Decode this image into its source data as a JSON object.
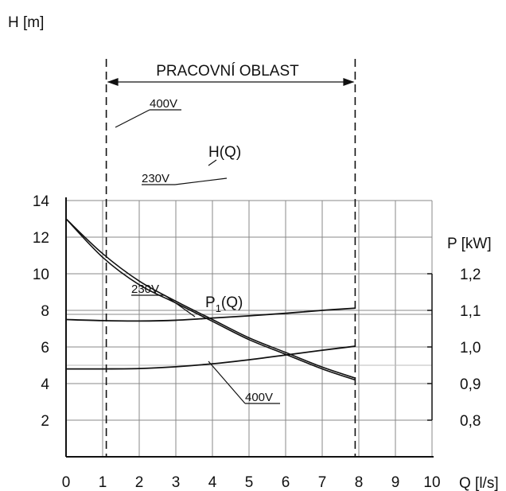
{
  "chart_data": {
    "type": "line",
    "region_label": "PRACOVNÍ OBLAST",
    "region_q": [
      1.1,
      7.9
    ],
    "x": {
      "label": "Q [l/s]",
      "ticks": [
        "0",
        "1",
        "2",
        "3",
        "4",
        "5",
        "6",
        "7",
        "8",
        "9",
        "10"
      ],
      "range": [
        0,
        10
      ]
    },
    "y_head": {
      "label": "H [m]",
      "ticks": [
        "2",
        "4",
        "6",
        "8",
        "10",
        "12",
        "14"
      ],
      "range": [
        0,
        14
      ]
    },
    "y_power": {
      "label": "P [kW]",
      "ticks": [
        "0,8",
        "0,9",
        "1,0",
        "1,1",
        "1,2"
      ],
      "range": [
        0.8,
        1.2
      ]
    },
    "grid": true,
    "head_curves": {
      "name": "H(Q)",
      "series": [
        {
          "label": "400V",
          "x": [
            0,
            1,
            2,
            3,
            4,
            5,
            6,
            7,
            7.9
          ],
          "y": [
            13.0,
            11.1,
            9.6,
            8.5,
            7.5,
            6.5,
            5.7,
            4.9,
            4.3
          ]
        },
        {
          "label": "230V",
          "x": [
            0,
            1,
            2,
            3,
            4,
            5,
            6,
            7,
            7.9
          ],
          "y": [
            13.0,
            10.9,
            9.4,
            8.4,
            7.4,
            6.4,
            5.6,
            4.8,
            4.2
          ]
        }
      ]
    },
    "power_curves": {
      "name_main": "P",
      "name_sub": "1",
      "name_tail": "(Q)",
      "series": [
        {
          "label": "230V",
          "x": [
            0,
            1,
            2,
            3,
            4,
            5,
            6,
            7,
            7.9
          ],
          "y": [
            1.075,
            1.072,
            1.071,
            1.073,
            1.079,
            1.085,
            1.092,
            1.1,
            1.106
          ]
        },
        {
          "label": "400V",
          "x": [
            0,
            1,
            2,
            3,
            4,
            5,
            6,
            7,
            7.9
          ],
          "y": [
            0.94,
            0.94,
            0.941,
            0.946,
            0.954,
            0.965,
            0.978,
            0.991,
            1.002
          ]
        }
      ]
    }
  }
}
